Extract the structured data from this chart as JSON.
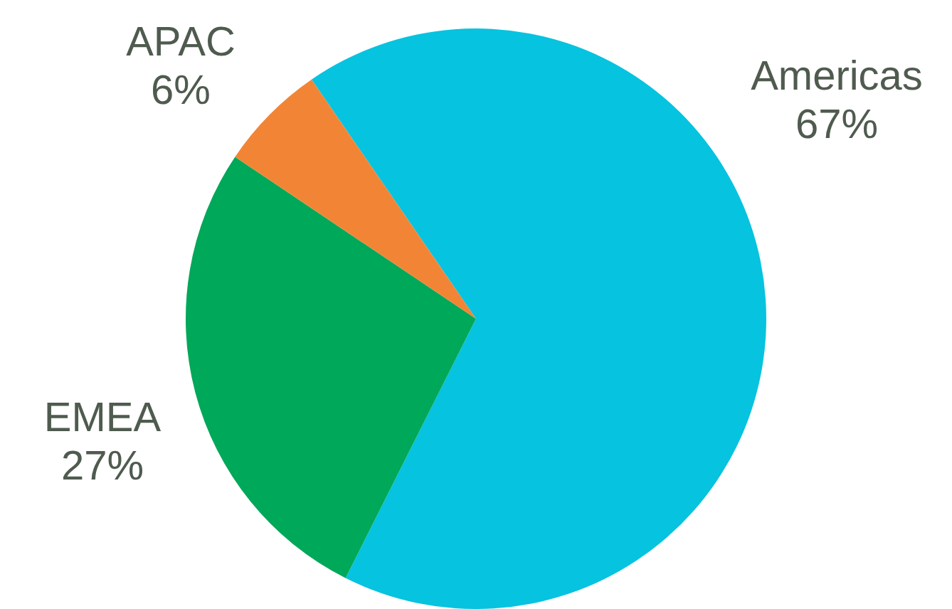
{
  "chart_data": {
    "type": "pie",
    "categories": [
      "Americas",
      "EMEA",
      "APAC"
    ],
    "values": [
      67,
      27,
      6
    ],
    "colors": [
      "#06c3df",
      "#00a859",
      "#f28535"
    ],
    "value_labels": [
      "67%",
      "27%",
      "6%"
    ],
    "legend": false
  }
}
